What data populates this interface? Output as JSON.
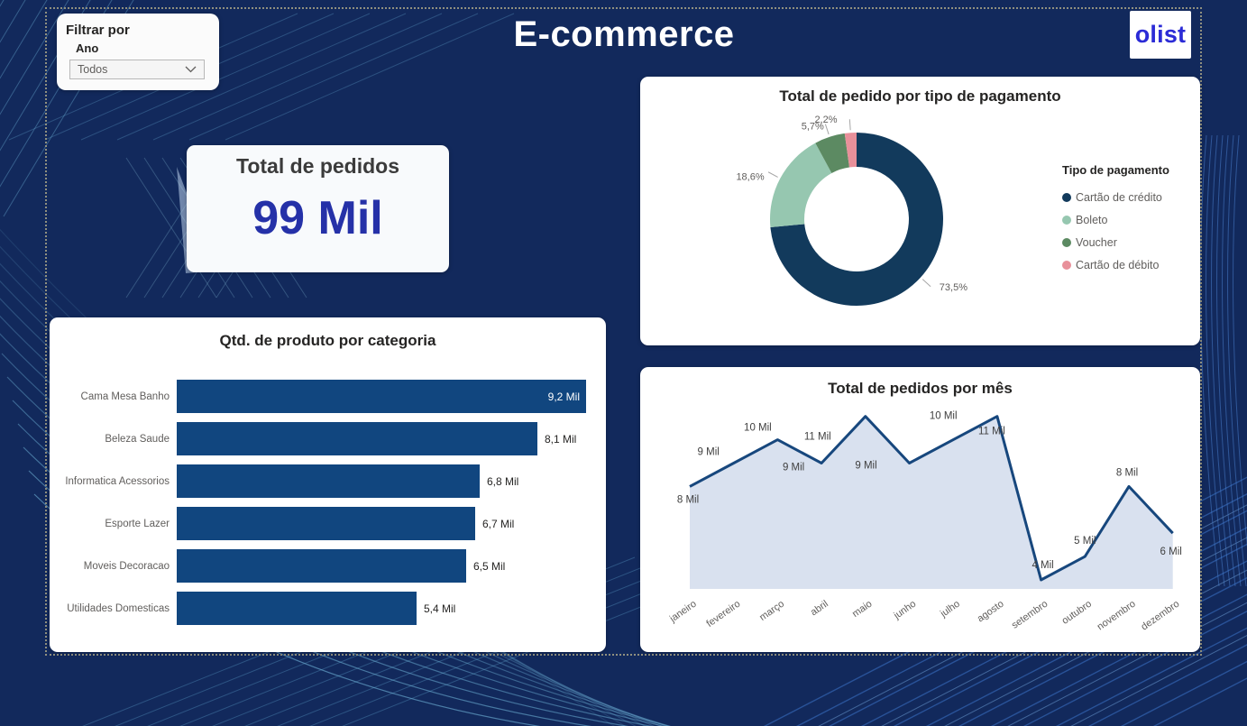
{
  "page": {
    "title": "E-commerce",
    "logo_text": "olist",
    "logo_color": "#2B2BD6",
    "background_color": "#12295C"
  },
  "filter": {
    "title": "Filtrar por",
    "field_label": "Ano",
    "value": "Todos"
  },
  "kpi": {
    "title": "Total de pedidos",
    "value": "99 Mil",
    "value_color": "#2531A8"
  },
  "chart_data": [
    {
      "id": "payment",
      "type": "pie",
      "donut": true,
      "title": "Total de pedido por tipo de pagamento",
      "legend_title": "Tipo de pagamento",
      "legend_position": "right",
      "labels": [
        "Cartão de crédito",
        "Boleto",
        "Voucher",
        "Cartão de débito"
      ],
      "values": [
        73.5,
        18.6,
        5.7,
        2.2
      ],
      "display_values": [
        "73,5%",
        "18,6%",
        "5,7%",
        "2,2%"
      ],
      "colors": [
        "#123A5C",
        "#96C7B0",
        "#5C8A62",
        "#E8909A"
      ]
    },
    {
      "id": "category",
      "type": "bar",
      "orientation": "horizontal",
      "title": "Qtd. de produto por categoria",
      "categories": [
        "Cama Mesa Banho",
        "Beleza Saude",
        "Informatica Acessorios",
        "Esporte Lazer",
        "Moveis Decoracao",
        "Utilidades Domesticas"
      ],
      "values": [
        9.2,
        8.1,
        6.8,
        6.7,
        6.5,
        5.4
      ],
      "display_values": [
        "9,2 Mil",
        "8,1 Mil",
        "6,8 Mil",
        "6,7 Mil",
        "6,5 Mil",
        "5,4 Mil"
      ],
      "unit": "Mil",
      "bar_color": "#11467F",
      "xlim": [
        0,
        9.35
      ]
    },
    {
      "id": "monthly",
      "type": "area",
      "title": "Total de pedidos por mês",
      "categories": [
        "janeiro",
        "fevereiro",
        "março",
        "abril",
        "maio",
        "junho",
        "julho",
        "agosto",
        "setembro",
        "outubro",
        "novembro",
        "dezembro"
      ],
      "values": [
        8,
        9,
        10,
        9,
        11,
        9,
        10,
        11,
        4,
        5,
        8,
        6
      ],
      "display_values": [
        "8 Mil",
        "9 Mil",
        "10 Mil",
        "9 Mil",
        "11 Mil",
        "9 Mil",
        "10 Mil",
        "11 Mil",
        "4 Mil",
        "5 Mil",
        "8 Mil",
        "6 Mil"
      ],
      "unit": "Mil",
      "line_color": "#17477D",
      "fill_color": "#D9E1EF",
      "ylim": [
        3.6,
        11.5
      ],
      "grid": false
    }
  ]
}
